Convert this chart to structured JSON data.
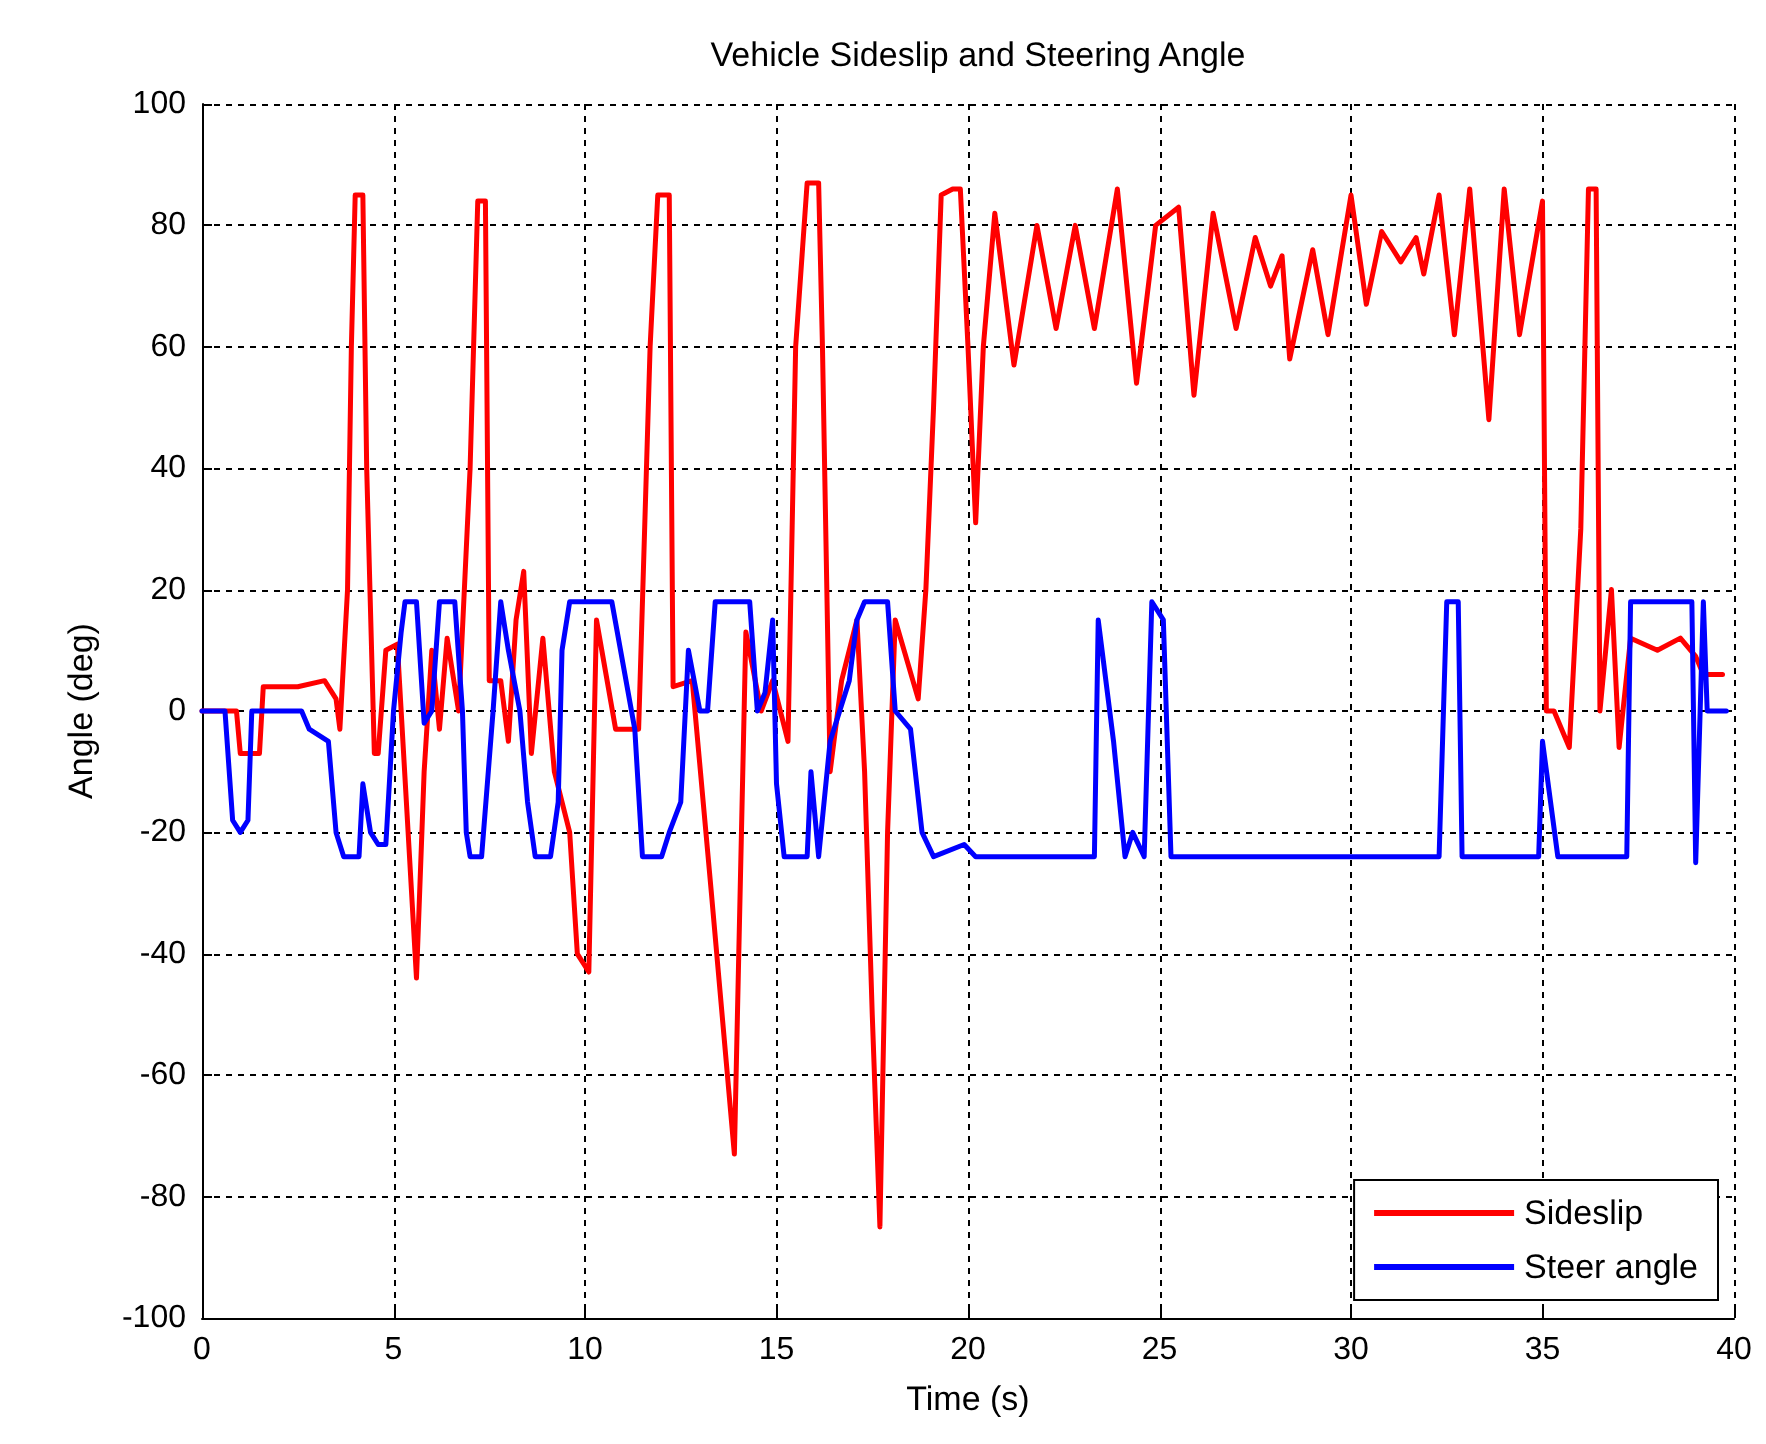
{
  "chart_data": {
    "type": "line",
    "title": "Vehicle Sideslip and Steering Angle",
    "xlabel": "Time (s)",
    "ylabel": "Angle (deg)",
    "xlim": [
      0,
      40
    ],
    "xticks": [
      0,
      5,
      10,
      15,
      20,
      25,
      30,
      35,
      40
    ],
    "ylim": [
      -100,
      100
    ],
    "yticks": [
      -100,
      -80,
      -60,
      -40,
      -20,
      0,
      20,
      40,
      60,
      80,
      100
    ],
    "grid": true,
    "legend": "bottom right",
    "marker": "none",
    "line_style": "solid",
    "series": [
      {
        "name": "Sideslip",
        "color": "#ff0000",
        "x": [
          0,
          0.9,
          1.0,
          1.5,
          1.6,
          2.5,
          3.2,
          3.5,
          3.6,
          3.8,
          3.9,
          4.0,
          4.2,
          4.3,
          4.5,
          4.6,
          4.8,
          5.1,
          5.6,
          5.8,
          6.0,
          6.2,
          6.4,
          6.7,
          7.0,
          7.2,
          7.4,
          7.5,
          7.8,
          8.0,
          8.2,
          8.4,
          8.6,
          8.9,
          9.2,
          9.6,
          9.8,
          10.1,
          10.3,
          10.8,
          11.4,
          11.7,
          11.9,
          12.2,
          12.3,
          12.8,
          13.3,
          13.9,
          14.2,
          14.6,
          14.9,
          15.3,
          15.5,
          15.8,
          16.1,
          16.2,
          16.4,
          16.7,
          17.1,
          17.3,
          17.5,
          17.7,
          17.9,
          18.1,
          18.7,
          18.9,
          19.1,
          19.3,
          19.6,
          19.8,
          20.0,
          20.2,
          20.4,
          20.7,
          21.2,
          21.8,
          22.3,
          22.8,
          23.3,
          23.9,
          24.4,
          24.9,
          25.5,
          25.9,
          26.4,
          27.0,
          27.5,
          27.9,
          28.2,
          28.4,
          29.0,
          29.4,
          30.0,
          30.4,
          30.8,
          31.3,
          31.7,
          31.9,
          32.3,
          32.7,
          33.1,
          33.6,
          34.0,
          34.4,
          35.0,
          35.1,
          35.3,
          35.7,
          36.0,
          36.2,
          36.4,
          36.5,
          36.8,
          37.0,
          37.3,
          38.0,
          38.6,
          39.0,
          39.2,
          39.7
        ],
        "values": [
          0,
          0,
          -7,
          -7,
          4,
          4,
          5,
          2,
          -3,
          20,
          60,
          85,
          85,
          40,
          -7,
          -7,
          10,
          11,
          -44,
          -10,
          10,
          -3,
          12,
          0,
          40,
          84,
          84,
          5,
          5,
          -5,
          15,
          23,
          -7,
          12,
          -10,
          -20,
          -40,
          -43,
          15,
          -3,
          -3,
          60,
          85,
          85,
          4,
          5,
          -30,
          -73,
          13,
          0,
          5,
          -5,
          60,
          87,
          87,
          60,
          -10,
          5,
          15,
          -10,
          -50,
          -85,
          -20,
          15,
          2,
          20,
          50,
          85,
          86,
          86,
          60,
          31,
          60,
          82,
          57,
          80,
          63,
          80,
          63,
          86,
          54,
          80,
          83,
          52,
          82,
          63,
          78,
          70,
          75,
          58,
          76,
          62,
          85,
          67,
          79,
          74,
          78,
          72,
          85,
          62,
          86,
          48,
          86,
          62,
          84,
          0,
          0,
          -6,
          30,
          86,
          86,
          0,
          20,
          -6,
          12,
          10,
          12,
          9,
          6,
          6
        ]
      },
      {
        "name": "Steer angle",
        "color": "#0000ff",
        "x": [
          0,
          0.6,
          0.8,
          1.0,
          1.2,
          1.3,
          2.6,
          2.8,
          3.3,
          3.5,
          3.7,
          4.1,
          4.2,
          4.4,
          4.6,
          4.8,
          5.0,
          5.2,
          5.3,
          5.6,
          5.8,
          6.0,
          6.2,
          6.6,
          6.8,
          6.9,
          7.0,
          7.3,
          7.6,
          7.8,
          8.0,
          8.3,
          8.5,
          8.7,
          9.1,
          9.3,
          9.4,
          9.6,
          10.7,
          11.3,
          11.5,
          12.0,
          12.2,
          12.5,
          12.7,
          13.0,
          13.2,
          13.4,
          14.3,
          14.5,
          14.7,
          14.9,
          15.0,
          15.2,
          15.8,
          15.9,
          16.1,
          16.4,
          16.9,
          17.1,
          17.3,
          17.9,
          18.1,
          18.5,
          18.8,
          19.1,
          19.9,
          20.2,
          23.3,
          23.4,
          23.8,
          24.1,
          24.3,
          24.6,
          24.8,
          25.1,
          25.3,
          32.3,
          32.5,
          32.8,
          32.9,
          34.9,
          35.0,
          35.4,
          37.2,
          37.3,
          38.9,
          39.0,
          39.2,
          39.3,
          39.8
        ],
        "values": [
          0,
          0,
          -18,
          -20,
          -18,
          0,
          0,
          -3,
          -5,
          -20,
          -24,
          -24,
          -12,
          -20,
          -22,
          -22,
          0,
          13,
          18,
          18,
          -2,
          0,
          18,
          18,
          0,
          -20,
          -24,
          -24,
          0,
          18,
          10,
          0,
          -15,
          -24,
          -24,
          -15,
          10,
          18,
          18,
          -3,
          -24,
          -24,
          -20,
          -15,
          10,
          0,
          0,
          18,
          18,
          0,
          3,
          15,
          -12,
          -24,
          -24,
          -10,
          -24,
          -5,
          5,
          15,
          18,
          18,
          0,
          -3,
          -20,
          -24,
          -22,
          -24,
          -24,
          15,
          -5,
          -24,
          -20,
          -24,
          18,
          15,
          -24,
          -24,
          18,
          18,
          -24,
          -24,
          -5,
          -24,
          -24,
          18,
          18,
          -25,
          18,
          0,
          0
        ]
      }
    ]
  }
}
